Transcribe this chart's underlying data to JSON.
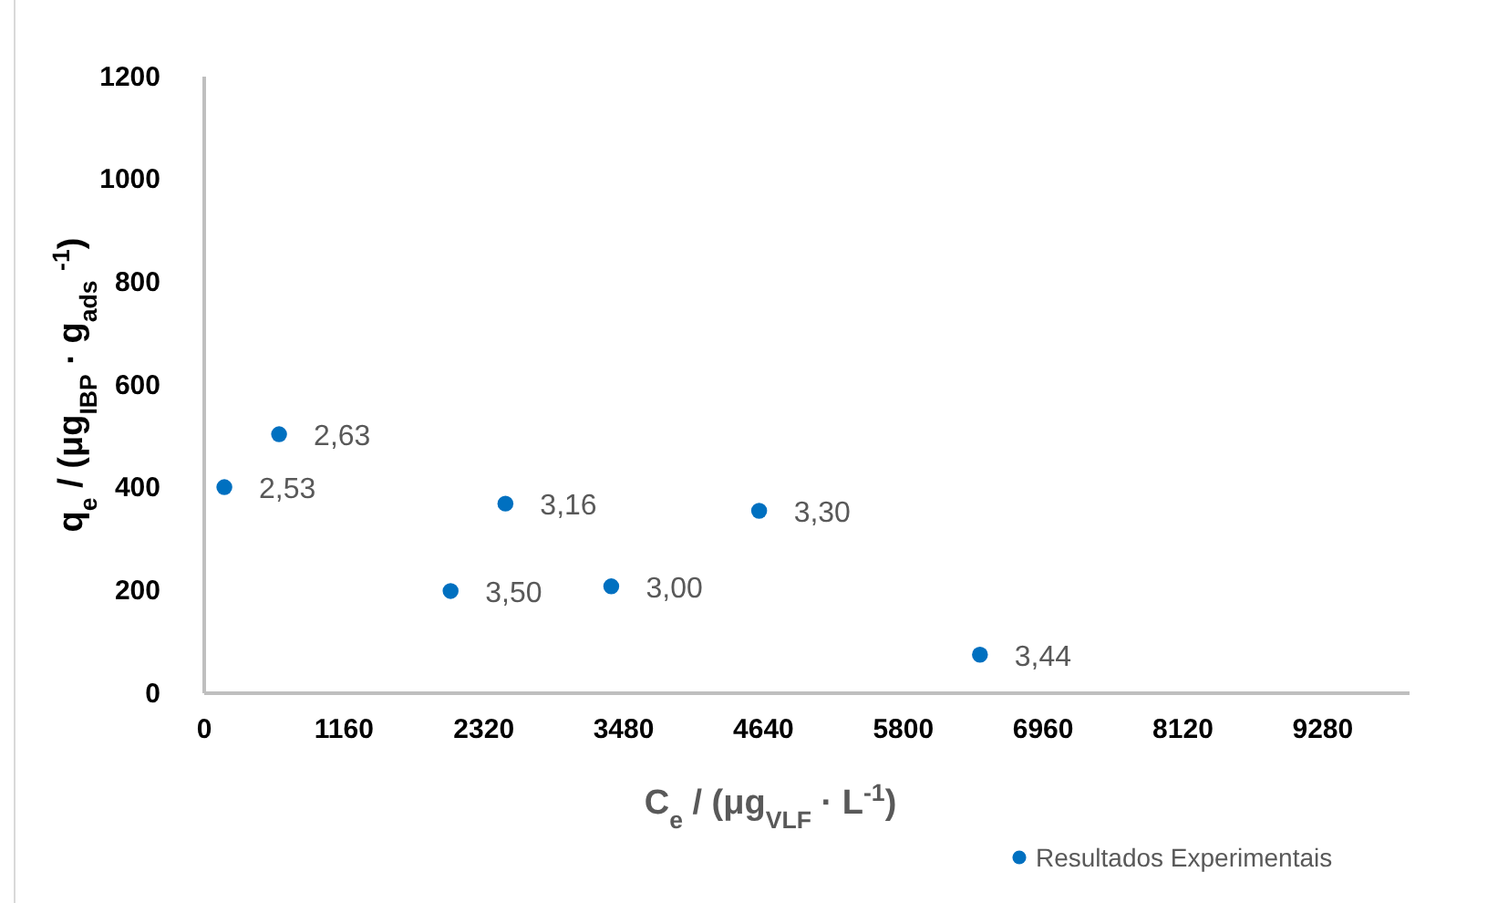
{
  "chart_data": {
    "type": "scatter",
    "xlabel": "C$_{e}$ / (μg$_{VLF}$ · L$^{-1}$)",
    "ylabel": "q$_{e}$ / (μg$_{IBP}$ · g$_{ads}$ $^{-1}$)",
    "x": [
      167,
      621,
      2044,
      2499,
      3377,
      4604,
      6436
    ],
    "series": [
      {
        "name": "Resultados Experimentais",
        "color": "#0070c0",
        "values": [
          401,
          504,
          199,
          369,
          208,
          355,
          75
        ]
      }
    ],
    "xlim": [
      0,
      10000
    ],
    "xticks": [
      0,
      1160,
      2320,
      3480,
      4640,
      5800,
      6960,
      8120,
      9280
    ],
    "ylim": [
      0,
      1200
    ],
    "yticks": [
      0,
      200,
      400,
      600,
      800,
      1000,
      1200
    ],
    "grid": false,
    "legend": "bottom right",
    "marker": "circle",
    "annotations": [
      {
        "text": "2,53",
        "x": 167,
        "y": 401
      },
      {
        "text": "2,63",
        "x": 621,
        "y": 504
      },
      {
        "text": "3,50",
        "x": 2044,
        "y": 199
      },
      {
        "text": "3,16",
        "x": 2499,
        "y": 369
      },
      {
        "text": "3,00",
        "x": 3377,
        "y": 208
      },
      {
        "text": "3,30",
        "x": 4604,
        "y": 355
      },
      {
        "text": "3,44",
        "x": 6436,
        "y": 75
      }
    ]
  }
}
